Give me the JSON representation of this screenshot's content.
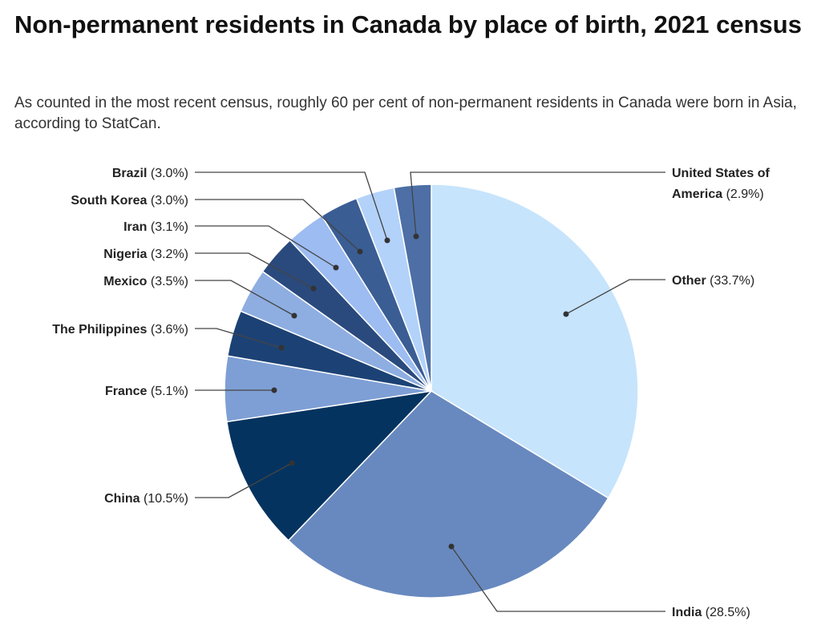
{
  "chart_data": {
    "type": "pie",
    "title": "Non-permanent residents in Canada by place of birth, 2021 census",
    "subtitle": "As counted in the most recent census, roughly 60 per cent of non-permanent residents in Canada were born in Asia, according to StatCan.",
    "start": "12 o'clock, clockwise",
    "slices": [
      {
        "name": "Other",
        "value": 33.7,
        "label": "(33.7%)",
        "color": "#c6e4fc"
      },
      {
        "name": "India",
        "value": 28.5,
        "label": "(28.5%)",
        "color": "#6889bf"
      },
      {
        "name": "China",
        "value": 10.5,
        "label": "(10.5%)",
        "color": "#05335f"
      },
      {
        "name": "France",
        "value": 5.1,
        "label": "(5.1%)",
        "color": "#7e9fd5"
      },
      {
        "name": "The Philippines",
        "value": 3.6,
        "label": "(3.6%)",
        "color": "#1c4275"
      },
      {
        "name": "Mexico",
        "value": 3.5,
        "label": "(3.5%)",
        "color": "#8eaee2"
      },
      {
        "name": "Nigeria",
        "value": 3.2,
        "label": "(3.2%)",
        "color": "#2a4a7d"
      },
      {
        "name": "Iran",
        "value": 3.1,
        "label": "(3.1%)",
        "color": "#9dbcf1"
      },
      {
        "name": "South Korea",
        "value": 3.0,
        "label": "(3.0%)",
        "color": "#3a5d94"
      },
      {
        "name": "Brazil",
        "value": 3.0,
        "label": "(3.0%)",
        "color": "#b3d2fa"
      },
      {
        "name": "United States of America",
        "value": 2.9,
        "label": "(2.9%)",
        "color": "#4d6fa6"
      }
    ]
  }
}
